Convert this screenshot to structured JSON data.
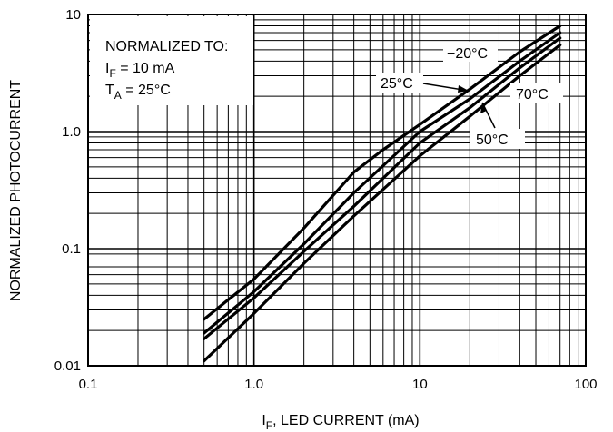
{
  "chart_data": {
    "type": "line",
    "xscale": "log",
    "yscale": "log",
    "xlim": [
      0.1,
      100
    ],
    "ylim": [
      0.01,
      10
    ],
    "grid": true,
    "xlabel": {
      "main": "I",
      "sub": "F",
      "rest": ", LED CURRENT (mA)"
    },
    "ylabel": "NORMALIZED PHOTOCURRENT",
    "x_ticks": [
      {
        "value": 0.1,
        "label": "0.1"
      },
      {
        "value": 1,
        "label": "1.0"
      },
      {
        "value": 10,
        "label": "10"
      },
      {
        "value": 100,
        "label": "100"
      }
    ],
    "y_ticks": [
      {
        "value": 0.01,
        "label": "0.01"
      },
      {
        "value": 0.1,
        "label": "0.1"
      },
      {
        "value": 1,
        "label": "1.0"
      },
      {
        "value": 10,
        "label": "10"
      }
    ],
    "note": {
      "line1": "NORMALIZED TO:",
      "line2": {
        "main": "I",
        "sub": "F",
        "rest": " = 10 mA"
      },
      "line3": {
        "main": "T",
        "sub": "A",
        "rest": " = 25°C"
      }
    },
    "series": [
      {
        "name": "−20°C",
        "x": [
          0.5,
          1,
          2,
          4,
          6,
          10,
          20,
          40,
          70
        ],
        "y": [
          0.025,
          0.055,
          0.15,
          0.45,
          0.7,
          1.15,
          2.3,
          4.8,
          8.0
        ]
      },
      {
        "name": "25°C",
        "x": [
          0.5,
          1,
          2,
          4,
          10,
          20,
          40,
          70
        ],
        "y": [
          0.019,
          0.043,
          0.11,
          0.3,
          1.0,
          1.9,
          4.0,
          7.0
        ]
      },
      {
        "name": "50°C",
        "x": [
          0.5,
          1,
          2,
          4,
          10,
          20,
          40,
          70
        ],
        "y": [
          0.017,
          0.038,
          0.095,
          0.23,
          0.8,
          1.6,
          3.5,
          6.3
        ]
      },
      {
        "name": "70°C",
        "x": [
          0.5,
          1,
          2,
          4,
          10,
          20,
          40,
          70
        ],
        "y": [
          0.011,
          0.028,
          0.075,
          0.19,
          0.62,
          1.35,
          3.0,
          5.5
        ]
      }
    ]
  }
}
